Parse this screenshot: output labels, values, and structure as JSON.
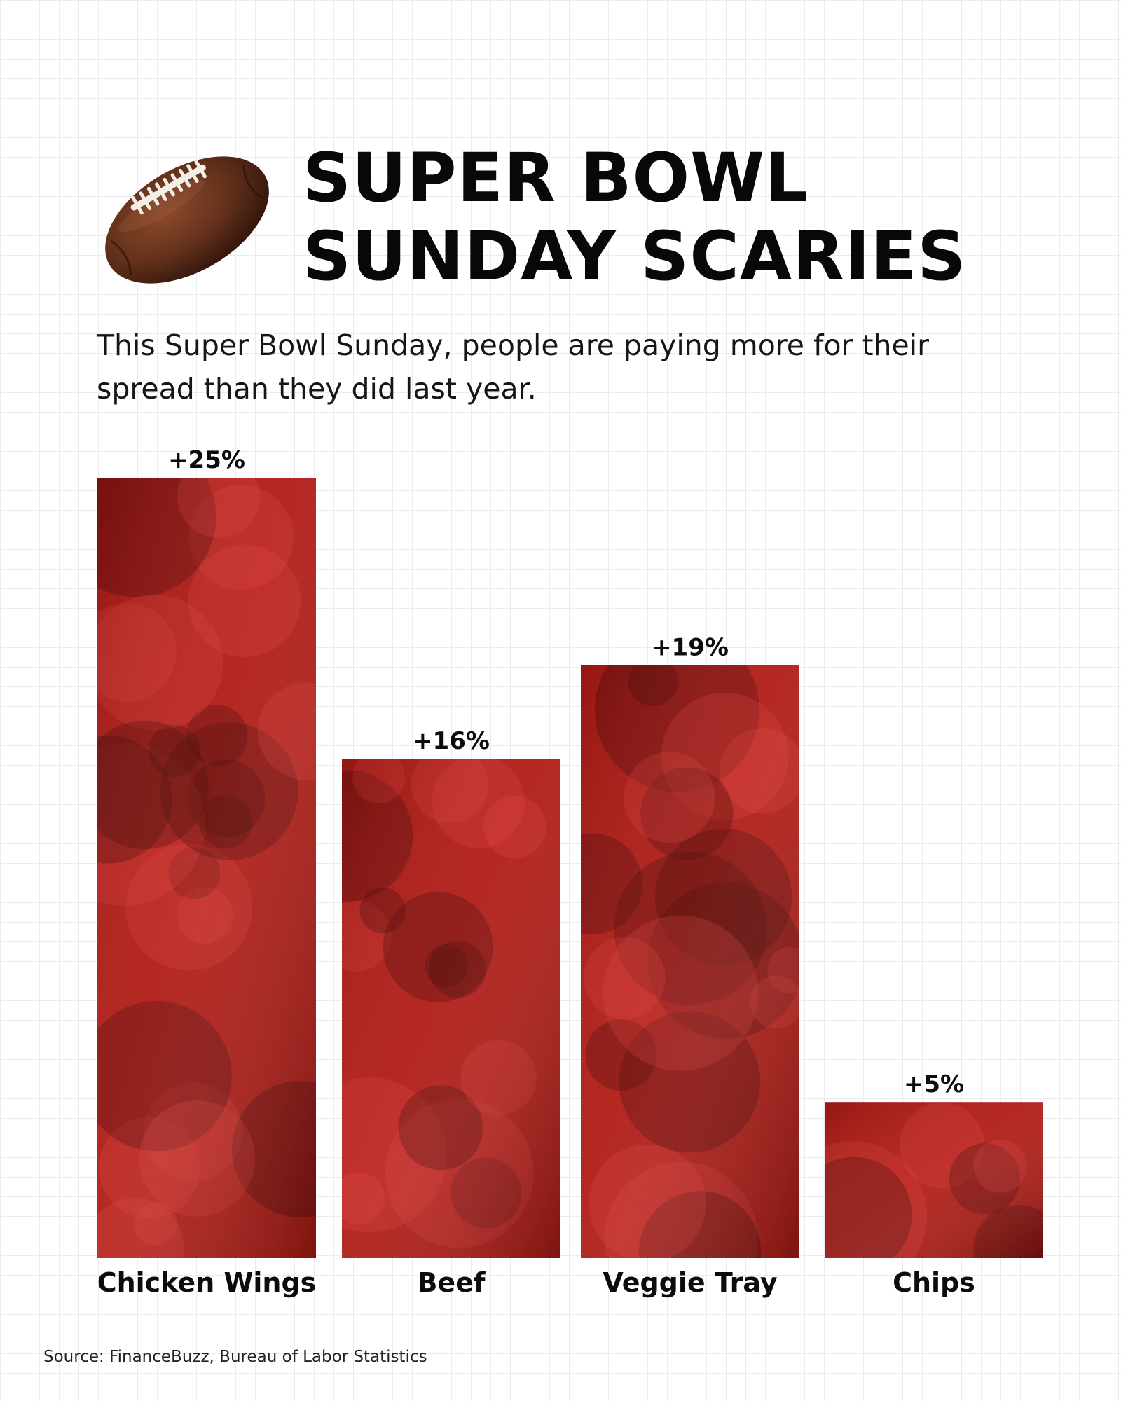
{
  "header": {
    "title_line1": "SUPER BOWL",
    "title_line2": "SUNDAY SCARIES",
    "subtitle": "This Super Bowl Sunday, people are paying more for their spread than they did last year.",
    "icon": "football-icon"
  },
  "footer": {
    "source": "Source: FinanceBuzz, Bureau of Labor Statistics"
  },
  "colors": {
    "bar_fill": "#b01a14",
    "bar_dark": "#4a0504",
    "bar_light": "#e0403a",
    "text": "#0c0c0c",
    "grid": "#ececec",
    "background": "#ffffff"
  },
  "chart_data": {
    "type": "bar",
    "title": "SUPER BOWL SUNDAY SCARIES",
    "categories": [
      "Chicken Wings",
      "Beef",
      "Veggie Tray",
      "Chips"
    ],
    "values": [
      25,
      16,
      19,
      5
    ],
    "value_labels": [
      "+25%",
      "+16%",
      "+19%",
      "+5%"
    ],
    "unit": "%",
    "xlabel": "",
    "ylabel": "",
    "ylim": [
      0,
      25
    ],
    "grid": false,
    "legend": "none",
    "bar_textures": [
      "chicken-wings-photo",
      "beef-chili-photo",
      "veggie-tray-photo",
      "chips-photo"
    ]
  }
}
